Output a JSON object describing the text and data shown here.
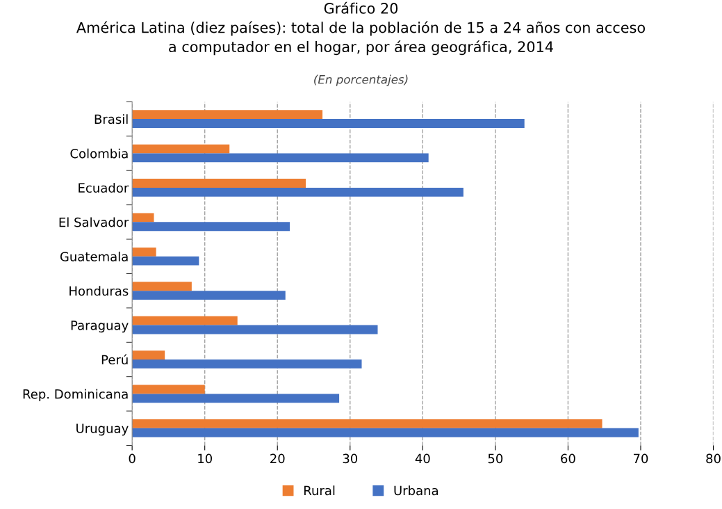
{
  "chart_data": {
    "type": "bar",
    "orientation": "horizontal",
    "title": "Gráfico 20\nAmérica Latina (diez países): total de la población de 15 a 24 años con acceso\na computador en el hogar, por área geográfica, 2014",
    "subtitle": "(En porcentajes)",
    "categories": [
      "Brasil",
      "Colombia",
      "Ecuador",
      "El Salvador",
      "Guatemala",
      "Honduras",
      "Paraguay",
      "Perú",
      "Rep. Dominicana",
      "Uruguay"
    ],
    "series": [
      {
        "name": "Rural",
        "color": "#ed7d31",
        "values": [
          26.2,
          13.4,
          23.9,
          3.0,
          3.3,
          8.2,
          14.5,
          4.5,
          10.0,
          64.7
        ]
      },
      {
        "name": "Urbana",
        "color": "#4472c4",
        "values": [
          54.0,
          40.8,
          45.6,
          21.7,
          9.2,
          21.1,
          33.8,
          31.6,
          28.5,
          69.7
        ]
      }
    ],
    "xlim": [
      0,
      80
    ],
    "xticks": [
      0,
      10,
      20,
      30,
      40,
      50,
      60,
      70,
      80
    ],
    "grid": "x",
    "legend": "bottom"
  }
}
